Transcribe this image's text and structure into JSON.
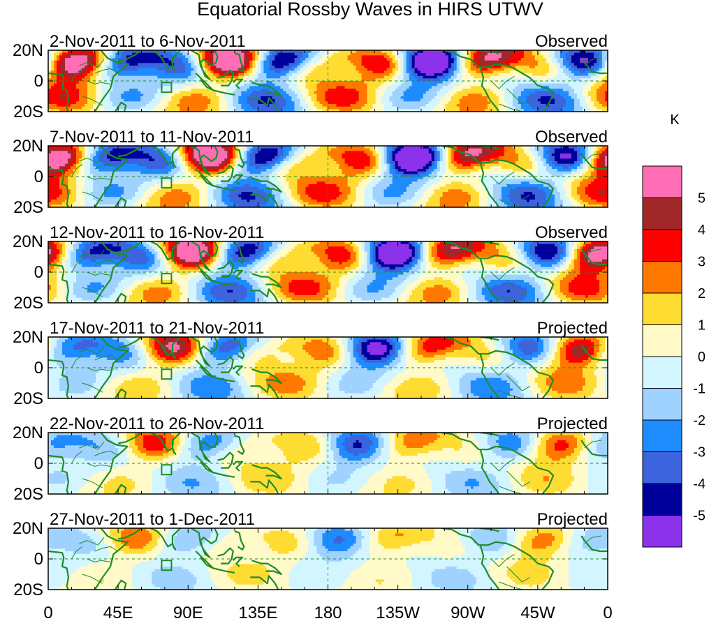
{
  "chart_data": {
    "type": "heatmap",
    "title": "Equatorial Rossby Waves in HIRS UTWV",
    "xlabel": "",
    "ylabel": "",
    "x_ticks": [
      "0",
      "45E",
      "90E",
      "135E",
      "180",
      "135W",
      "90W",
      "45W",
      "0"
    ],
    "x_tick_degrees": [
      0,
      45,
      90,
      135,
      180,
      225,
      270,
      315,
      360
    ],
    "y_ticks": [
      "20N",
      "0",
      "20S"
    ],
    "y_tick_degrees": [
      20,
      0,
      -20
    ],
    "xlim": [
      0,
      360
    ],
    "ylim": [
      -20,
      20
    ],
    "colorbar": {
      "unit": "K",
      "levels": [
        "5",
        "4",
        "3",
        "2",
        "1",
        "0",
        "-1",
        "-2",
        "-3",
        "-4",
        "-5"
      ],
      "colors": [
        "#ff6eb4",
        "#a02828",
        "#ff0000",
        "#ff7800",
        "#ffdc32",
        "#fffac8",
        "#d2f5ff",
        "#a0d2ff",
        "#1e8cff",
        "#3c64dc",
        "#00009b",
        "#8c32eb"
      ]
    },
    "panels": [
      {
        "date_range": "2-Nov-2011 to 6-Nov-2011",
        "label": "Observed",
        "amplitude": 1.0,
        "shift": 0
      },
      {
        "date_range": "7-Nov-2011 to 11-Nov-2011",
        "label": "Observed",
        "amplitude": 1.0,
        "shift": 12
      },
      {
        "date_range": "12-Nov-2011 to 16-Nov-2011",
        "label": "Observed",
        "amplitude": 0.95,
        "shift": 24
      },
      {
        "date_range": "17-Nov-2011 to 21-Nov-2011",
        "label": "Projected",
        "amplitude": 0.7,
        "shift": 36
      },
      {
        "date_range": "22-Nov-2011 to 26-Nov-2011",
        "label": "Projected",
        "amplitude": 0.5,
        "shift": 48
      },
      {
        "date_range": "27-Nov-2011 to 1-Dec-2011",
        "label": "Projected",
        "amplitude": 0.38,
        "shift": 60
      }
    ]
  }
}
